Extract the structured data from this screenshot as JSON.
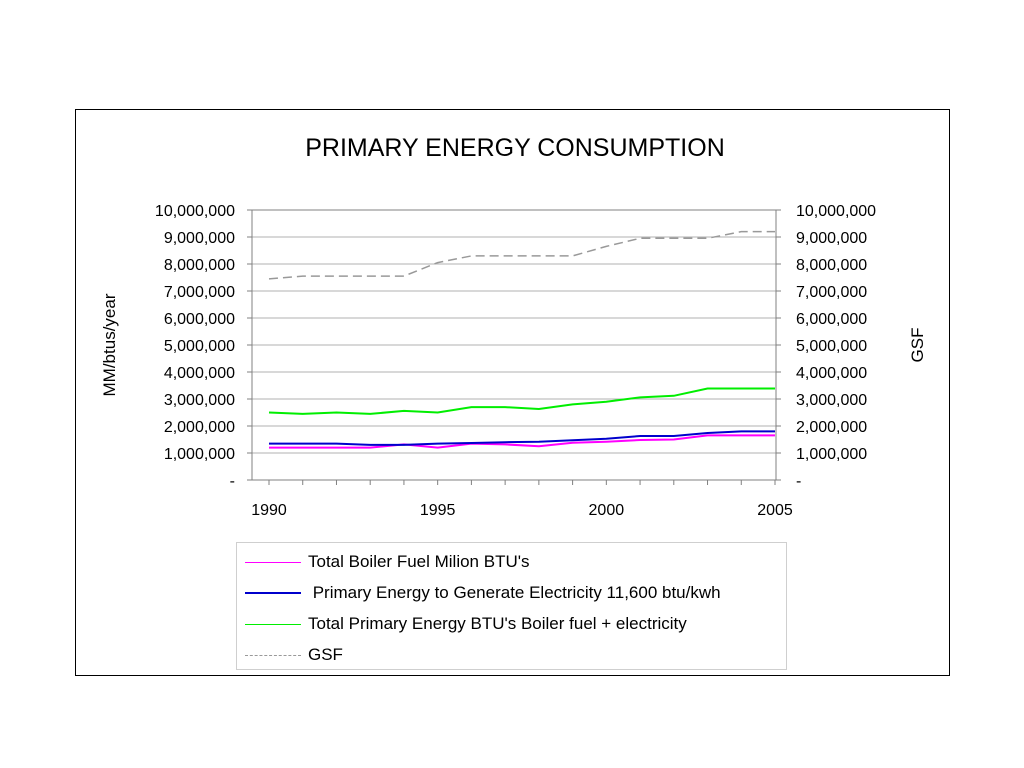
{
  "chart_data": {
    "type": "line",
    "title": "PRIMARY ENERGY CONSUMPTION",
    "ylabel_left": "MM/btus/year",
    "ylabel_right": "GSF",
    "xlim": [
      1990,
      2005
    ],
    "ylim": [
      0,
      10000000
    ],
    "x_ticks": [
      "1990",
      "1995",
      "2000",
      "2005"
    ],
    "y_ticks": [
      "-",
      "1,000,000",
      "2,000,000",
      "3,000,000",
      "4,000,000",
      "5,000,000",
      "6,000,000",
      "7,000,000",
      "8,000,000",
      "9,000,000",
      "10,000,000"
    ],
    "y_tick_values": [
      0,
      1000000,
      2000000,
      3000000,
      4000000,
      5000000,
      6000000,
      7000000,
      8000000,
      9000000,
      10000000
    ],
    "grid": true,
    "legend_position": "bottom",
    "x": [
      1990,
      1991,
      1992,
      1993,
      1994,
      1995,
      1996,
      1997,
      1998,
      1999,
      2000,
      2001,
      2002,
      2003,
      2004,
      2005
    ],
    "series": [
      {
        "name": "Total Boiler Fuel Milion BTU's",
        "color": "#ff00ff",
        "dash": "solid",
        "values": [
          1200000,
          1200000,
          1200000,
          1200000,
          1320000,
          1200000,
          1350000,
          1320000,
          1250000,
          1380000,
          1420000,
          1480000,
          1500000,
          1650000,
          1650000,
          1650000
        ]
      },
      {
        "name": " Primary Energy to Generate Electricity 11,600 btu/kwh",
        "color": "#0000cc",
        "dash": "solid",
        "values": [
          1350000,
          1350000,
          1350000,
          1300000,
          1300000,
          1350000,
          1370000,
          1400000,
          1420000,
          1470000,
          1530000,
          1630000,
          1630000,
          1740000,
          1800000,
          1800000
        ]
      },
      {
        "name": "Total Primary Energy BTU's Boiler fuel + electricity",
        "color": "#00ee00",
        "dash": "solid",
        "values": [
          2500000,
          2450000,
          2500000,
          2450000,
          2560000,
          2500000,
          2700000,
          2700000,
          2630000,
          2800000,
          2900000,
          3060000,
          3120000,
          3390000,
          3390000,
          3390000
        ]
      },
      {
        "name": "GSF",
        "color": "#999999",
        "dash": "dashed",
        "values": [
          7450000,
          7550000,
          7550000,
          7550000,
          7550000,
          8050000,
          8300000,
          8300000,
          8300000,
          8300000,
          8650000,
          8950000,
          8950000,
          8950000,
          9200000,
          9200000
        ]
      }
    ]
  }
}
